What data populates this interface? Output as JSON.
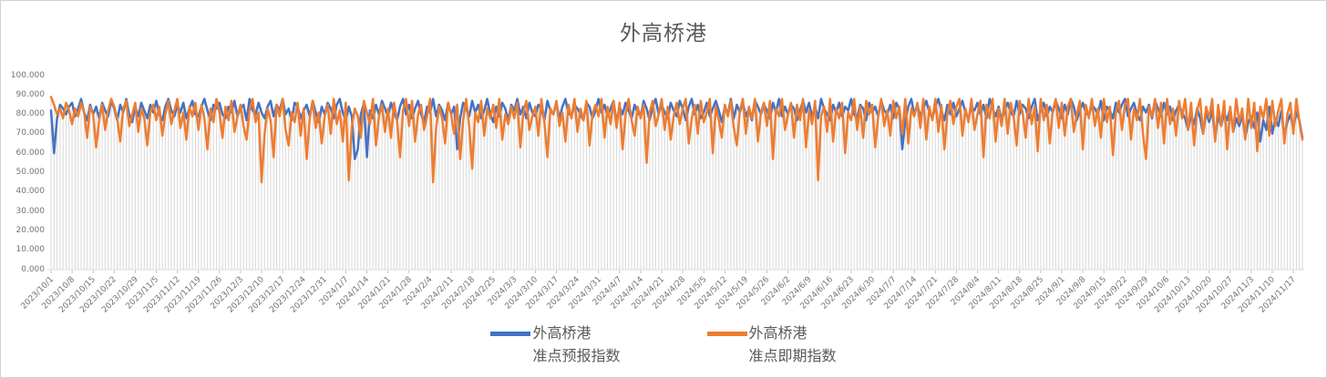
{
  "title": "外高桥港",
  "colors": {
    "series_forecast": "#4472C4",
    "series_spot": "#ED7D31",
    "droplines": "#DBDBDB",
    "axis_text": "#737373",
    "title_text": "#595959",
    "frame_border": "#D2D2D2",
    "tick_mark": "#BFBFBF"
  },
  "legend": {
    "items": [
      {
        "line1": "外高桥港",
        "line2": "准点预报指数",
        "color": "#4472C4"
      },
      {
        "line1": "外高桥港",
        "line2": "准点即期指数",
        "color": "#ED7D31"
      }
    ]
  },
  "chart_data": {
    "type": "line",
    "title": "外高桥港",
    "xlabel": "",
    "ylabel": "",
    "ylim": [
      0,
      100
    ],
    "grid": false,
    "droplines": true,
    "legend_position": "bottom",
    "start_date": "2023/10/1",
    "x_tick_interval_days": 7,
    "y_tick_labels": [
      "0.000",
      "10.000",
      "20.000",
      "30.000",
      "40.000",
      "50.000",
      "60.000",
      "70.000",
      "80.000",
      "90.000",
      "100.000"
    ],
    "x_tick_labels": [
      "2023/10/1",
      "2023/10/8",
      "2023/10/15",
      "2023/10/22",
      "2023/10/29",
      "2023/11/5",
      "2023/11/12",
      "2023/11/19",
      "2023/11/26",
      "2023/12/3",
      "2023/12/10",
      "2023/12/17",
      "2023/12/24",
      "2023/12/31",
      "2024/1/7",
      "2024/1/14",
      "2024/1/21",
      "2024/1/28",
      "2024/2/4",
      "2024/2/11",
      "2024/2/18",
      "2024/2/25",
      "2024/3/3",
      "2024/3/10",
      "2024/3/17",
      "2024/3/24",
      "2024/3/31",
      "2024/4/7",
      "2024/4/14",
      "2024/4/21",
      "2024/4/28",
      "2024/5/5",
      "2024/5/12",
      "2024/5/19",
      "2024/5/26",
      "2024/6/2",
      "2024/6/9",
      "2024/6/16",
      "2024/6/23",
      "2024/6/30",
      "2024/7/7",
      "2024/7/14",
      "2024/7/21",
      "2024/7/28",
      "2024/8/4",
      "2024/8/11",
      "2024/8/18",
      "2024/8/25",
      "2024/9/1",
      "2024/9/8",
      "2024/9/15",
      "2024/9/22",
      "2024/9/29",
      "2024/10/6",
      "2024/10/13",
      "2024/10/20",
      "2024/10/27",
      "2024/11/3",
      "2024/11/10",
      "2024/11/17"
    ],
    "series": [
      {
        "name": "外高桥港准点预报指数",
        "color": "#4472C4",
        "values": [
          82,
          60,
          78,
          85,
          83,
          80,
          84,
          86,
          79,
          83,
          88,
          81,
          77,
          85,
          80,
          84,
          78,
          86,
          82,
          79,
          87,
          83,
          77,
          85,
          81,
          88,
          80,
          76,
          84,
          79,
          86,
          82,
          78,
          85,
          81,
          87,
          80,
          77,
          84,
          88,
          82,
          79,
          85,
          81,
          86,
          78,
          83,
          87,
          80,
          79,
          84,
          88,
          82,
          77,
          85,
          83,
          86,
          80,
          78,
          84,
          81,
          87,
          79,
          83,
          85,
          77,
          88,
          82,
          80,
          86,
          81,
          78,
          84,
          87,
          79,
          85,
          82,
          88,
          80,
          83,
          77,
          86,
          84,
          78,
          82,
          85,
          79,
          87,
          81,
          76,
          84,
          80,
          86,
          83,
          78,
          85,
          88,
          81,
          77,
          84,
          79,
          57,
          62,
          80,
          86,
          58,
          82,
          78,
          85,
          80,
          87,
          83,
          79,
          86,
          81,
          77,
          84,
          88,
          80,
          85,
          78,
          83,
          87,
          80,
          76,
          84,
          81,
          88,
          79,
          85,
          82,
          77,
          86,
          80,
          84,
          62,
          78,
          86,
          83,
          79,
          87,
          81,
          85,
          78,
          82,
          88,
          80,
          76,
          84,
          79,
          86,
          83,
          77,
          85,
          82,
          88,
          80,
          84,
          78,
          86,
          81,
          79,
          85,
          83,
          77,
          87,
          82,
          80,
          86,
          78,
          84,
          88,
          81,
          79,
          85,
          83,
          80,
          77,
          86,
          84,
          78,
          82,
          88,
          81,
          85,
          79,
          83,
          87,
          76,
          84,
          80,
          86,
          82,
          78,
          85,
          81,
          79,
          87,
          83,
          77,
          84,
          88,
          80,
          85,
          81,
          78,
          86,
          82,
          79,
          87,
          83,
          77,
          84,
          88,
          80,
          85,
          78,
          81,
          86,
          79,
          83,
          87,
          82,
          76,
          84,
          80,
          88,
          78,
          85,
          81,
          86,
          79,
          83,
          77,
          87,
          84,
          80,
          85,
          82,
          78,
          86,
          81,
          88,
          79,
          84,
          80,
          85,
          83,
          77,
          82,
          87,
          81,
          86,
          79,
          84,
          78,
          88,
          83,
          80,
          77,
          85,
          81,
          86,
          79,
          84,
          82,
          88,
          80,
          78,
          85,
          83,
          77,
          86,
          81,
          84,
          79,
          87,
          82,
          80,
          85,
          78,
          86,
          83,
          62,
          77,
          84,
          88,
          80,
          85,
          79,
          83,
          87,
          81,
          78,
          84,
          88,
          82,
          77,
          85,
          80,
          86,
          79,
          83,
          87,
          81,
          78,
          84,
          82,
          86,
          80,
          85,
          78,
          88,
          83,
          79,
          84,
          77,
          82,
          86,
          81,
          79,
          87,
          80,
          85,
          83,
          78,
          84,
          88,
          77,
          82,
          86,
          79,
          84,
          81,
          87,
          83,
          78,
          85,
          80,
          88,
          84,
          77,
          82,
          86,
          81,
          79,
          85,
          83,
          80,
          87,
          77,
          84,
          82,
          78,
          86,
          81,
          85,
          88,
          79,
          83,
          86,
          80,
          77,
          84,
          81,
          85,
          78,
          87,
          83,
          79,
          86,
          80,
          84,
          77,
          82,
          85,
          81,
          78,
          72,
          80,
          75,
          83,
          78,
          70,
          81,
          76,
          82,
          68,
          79,
          74,
          81,
          77,
          83,
          71,
          78,
          74,
          80,
          68,
          76,
          79,
          73,
          81,
          66,
          77,
          72,
          84,
          70,
          78,
          74,
          82,
          69,
          76,
          80,
          73,
          81,
          77,
          68
        ]
      },
      {
        "name": "外高桥港准点即期指数",
        "color": "#ED7D31",
        "values": [
          89,
          85,
          80,
          83,
          78,
          86,
          82,
          75,
          83,
          79,
          86,
          81,
          68,
          84,
          80,
          63,
          77,
          85,
          72,
          82,
          88,
          84,
          78,
          66,
          83,
          87,
          74,
          80,
          86,
          71,
          83,
          78,
          64,
          81,
          85,
          77,
          84,
          69,
          80,
          87,
          75,
          82,
          88,
          73,
          81,
          67,
          84,
          79,
          86,
          72,
          85,
          78,
          62,
          83,
          76,
          88,
          81,
          68,
          84,
          77,
          87,
          71,
          79,
          85,
          74,
          67,
          82,
          88,
          76,
          81,
          45,
          70,
          83,
          77,
          58,
          85,
          79,
          88,
          72,
          64,
          81,
          76,
          86,
          69,
          83,
          57,
          78,
          87,
          73,
          81,
          65,
          79,
          85,
          70,
          88,
          75,
          82,
          66,
          86,
          46,
          74,
          83,
          79,
          68,
          87,
          81,
          75,
          88,
          64,
          79,
          85,
          71,
          83,
          68,
          86,
          77,
          58,
          82,
          88,
          74,
          87,
          66,
          80,
          85,
          72,
          79,
          88,
          45,
          73,
          84,
          78,
          65,
          86,
          80,
          70,
          85,
          57,
          77,
          88,
          74,
          52,
          81,
          76,
          87,
          69,
          83,
          78,
          85,
          73,
          88,
          67,
          80,
          75,
          84,
          78,
          86,
          63,
          81,
          87,
          72,
          79,
          84,
          69,
          88,
          76,
          58,
          83,
          80,
          87,
          74,
          81,
          66,
          85,
          78,
          88,
          71,
          83,
          77,
          87,
          64,
          80,
          85,
          79,
          88,
          68,
          84,
          75,
          87,
          73,
          86,
          62,
          80,
          88,
          77,
          69,
          84,
          78,
          85,
          55,
          81,
          87,
          74,
          80,
          88,
          72,
          84,
          67,
          79,
          86,
          75,
          83,
          88,
          65,
          78,
          85,
          70,
          87,
          76,
          81,
          88,
          60,
          84,
          77,
          68,
          85,
          79,
          87,
          73,
          64,
          82,
          88,
          70,
          84,
          78,
          88,
          66,
          81,
          86,
          74,
          87,
          57,
          83,
          79,
          88,
          72,
          80,
          86,
          68,
          85,
          77,
          88,
          63,
          82,
          75,
          87,
          46,
          79,
          84,
          71,
          88,
          66,
          83,
          78,
          86,
          60,
          81,
          77,
          88,
          72,
          84,
          68,
          87,
          80,
          85,
          63,
          79,
          88,
          74,
          82,
          69,
          87,
          78,
          84,
          70,
          88,
          65,
          83,
          79,
          86,
          73,
          88,
          67,
          84,
          77,
          88,
          71,
          85,
          62,
          80,
          87,
          75,
          84,
          88,
          69,
          83,
          76,
          88,
          72,
          80,
          87,
          58,
          85,
          78,
          88,
          66,
          83,
          74,
          88,
          70,
          86,
          79,
          64,
          87,
          81,
          68,
          88,
          75,
          84,
          61,
          88,
          77,
          85,
          65,
          82,
          88,
          73,
          86,
          69,
          84,
          88,
          71,
          80,
          87,
          62,
          85,
          78,
          88,
          74,
          83,
          68,
          88,
          76,
          84,
          59,
          81,
          87,
          72,
          85,
          88,
          67,
          83,
          77,
          88,
          70,
          57,
          84,
          79,
          88,
          73,
          86,
          65,
          88,
          75,
          83,
          69,
          87,
          78,
          88,
          72,
          86,
          64,
          82,
          88,
          70,
          84,
          78,
          88,
          66,
          85,
          74,
          87,
          62,
          84,
          71,
          88,
          76,
          83,
          67,
          88,
          73,
          86,
          61,
          84,
          78,
          88,
          69,
          87,
          74,
          82,
          88,
          65,
          80,
          86,
          70,
          88,
          76,
          67
        ]
      }
    ]
  }
}
